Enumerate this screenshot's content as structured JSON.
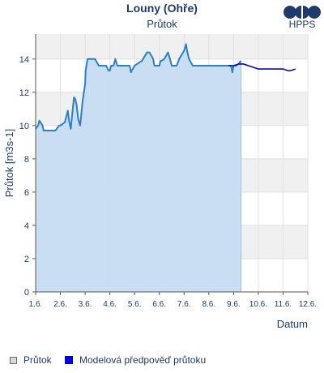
{
  "header": {
    "title": "Louny (Ohře)",
    "subtitle": "Průtok"
  },
  "logo": {
    "text": "HPPS"
  },
  "colors": {
    "text": "#1f3a6b",
    "observed_line": "#2b7fc4",
    "observed_fill": "#c7dcf2",
    "forecast_line": "#0a0ab0",
    "band": "#f0f0f0",
    "grid": "#e0e0e0",
    "separator": "#9ec0e0"
  },
  "legend": {
    "items": [
      {
        "label": "Průtok",
        "icon": "observed-square-icon"
      },
      {
        "label": "Modelová předpověď průtoku",
        "icon": "forecast-square-icon"
      }
    ]
  },
  "chart_data": {
    "type": "area",
    "ylabel": "Průtok [m3s-1]",
    "xlabel": "Datum",
    "ylim": [
      0,
      15.5
    ],
    "xlim": [
      0,
      11
    ],
    "yticks": [
      0,
      2,
      4,
      6,
      8,
      10,
      12,
      14
    ],
    "ytick_labels": [
      "0",
      "2",
      "4",
      "6",
      "8",
      "10",
      "12",
      "14"
    ],
    "xticks": [
      0,
      1,
      2,
      3,
      4,
      5,
      6,
      7,
      8,
      9,
      10,
      11
    ],
    "xtick_labels": [
      "1.6.",
      "2.6.",
      "3.6.",
      "4.6.",
      "5.6.",
      "6.6.",
      "7.6.",
      "8.6.",
      "9.6.",
      "10.6.",
      "11.6.",
      "12.6."
    ],
    "grid": true,
    "series": [
      {
        "name": "Průtok",
        "kind": "observed",
        "x": [
          0,
          0.1,
          0.15,
          0.28,
          0.32,
          0.5,
          0.8,
          0.95,
          1.0,
          1.18,
          1.25,
          1.3,
          1.35,
          1.42,
          1.5,
          1.55,
          1.6,
          1.66,
          1.72,
          1.8,
          1.9,
          2.0,
          2.02,
          2.1,
          2.15,
          2.25,
          2.3,
          2.4,
          2.55,
          2.7,
          2.85,
          2.95,
          3.0,
          3.05,
          3.1,
          3.15,
          3.22,
          3.3,
          3.5,
          3.8,
          3.85,
          4.0,
          4.3,
          4.5,
          4.6,
          4.75,
          4.8,
          4.9,
          5.0,
          5.05,
          5.1,
          5.2,
          5.35,
          5.45,
          5.5,
          5.6,
          5.7,
          5.8,
          6.0,
          6.08,
          6.12,
          6.2,
          6.35,
          6.4,
          6.5,
          6.55,
          6.6,
          6.65,
          6.75,
          6.8,
          6.9,
          7.0,
          7.3,
          7.5,
          7.8,
          7.9,
          7.95,
          8.0,
          8.1,
          8.2,
          8.3
        ],
        "y": [
          9.8,
          10.0,
          10.3,
          10.0,
          9.7,
          9.7,
          9.7,
          10.0,
          10.0,
          10.2,
          10.6,
          10.9,
          10.3,
          9.8,
          11.0,
          11.7,
          11.6,
          11.2,
          10.4,
          10.0,
          11.5,
          12.5,
          13.3,
          14.0,
          14.0,
          14.0,
          14.0,
          14.0,
          13.6,
          13.6,
          13.6,
          13.3,
          13.3,
          13.6,
          13.6,
          13.6,
          14.0,
          13.6,
          13.6,
          13.6,
          13.2,
          13.6,
          13.9,
          14.4,
          14.4,
          14.0,
          13.6,
          13.6,
          13.6,
          13.9,
          13.9,
          14.0,
          14.4,
          13.9,
          13.6,
          13.6,
          13.6,
          14.0,
          14.5,
          14.9,
          14.5,
          14.0,
          13.6,
          13.6,
          13.6,
          13.6,
          13.6,
          13.6,
          13.6,
          13.6,
          13.6,
          13.6,
          13.6,
          13.6,
          13.6,
          13.6,
          13.2,
          13.6,
          13.6,
          13.7,
          13.9
        ]
      },
      {
        "name": "Modelová předpověď průtoku",
        "kind": "forecast",
        "x": [
          7.8,
          8.0,
          8.2,
          8.4,
          8.6,
          8.8,
          9.0,
          9.2,
          9.4,
          9.6,
          9.8,
          10.0,
          10.2,
          10.3,
          10.5
        ],
        "y": [
          13.6,
          13.6,
          13.7,
          13.7,
          13.6,
          13.5,
          13.4,
          13.4,
          13.4,
          13.4,
          13.4,
          13.4,
          13.3,
          13.3,
          13.4
        ]
      }
    ]
  }
}
